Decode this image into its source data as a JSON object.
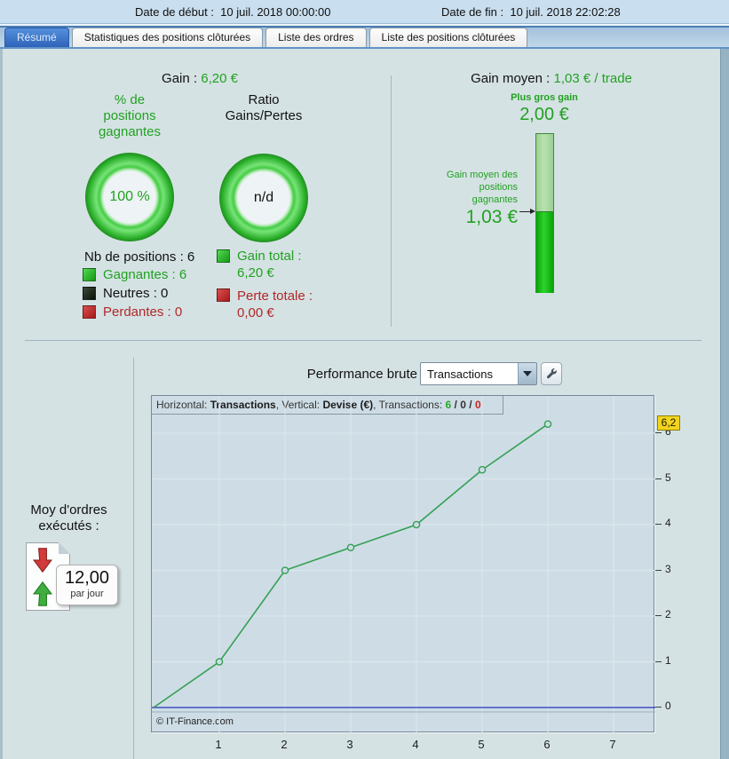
{
  "header": {
    "date_start_label": "Date de début :",
    "date_start_value": "10 juil. 2018 00:00:00",
    "date_end_label": "Date de fin :",
    "date_end_value": "10 juil. 2018 22:02:28"
  },
  "tabs": [
    {
      "label": "Résumé",
      "active": true
    },
    {
      "label": "Statistiques des positions clôturées",
      "active": false
    },
    {
      "label": "Liste des ordres",
      "active": false
    },
    {
      "label": "Liste des positions clôturées",
      "active": false
    }
  ],
  "summary": {
    "gain_label": "Gain :",
    "gain_value": "6,20 €",
    "win_pct_title": "% de\npositions\ngagnantes",
    "win_pct_value": "100 %",
    "ratio_title": "Ratio\nGains/Pertes",
    "ratio_value": "n/d",
    "positions_label": "Nb de positions : 6",
    "legend": [
      {
        "label": "Gagnantes : 6",
        "color": "#2ec82e"
      },
      {
        "label": "Neutres : 0",
        "color": "#1d2a1d"
      },
      {
        "label": "Perdantes : 0",
        "color": "#cc3333"
      }
    ],
    "gain_total_label": "Gain total :",
    "gain_total_value": "6,20 €",
    "loss_total_label": "Perte totale :",
    "loss_total_value": "0,00 €"
  },
  "average": {
    "title_label": "Gain moyen :",
    "title_value": "1,03 € / trade",
    "biggest_gain_label": "Plus gros gain",
    "biggest_gain_value": "2,00 €",
    "avg_win_label": "Gain moyen des\npositions\ngagnantes",
    "avg_win_value": "1,03 €"
  },
  "performance": {
    "label": "Performance brute",
    "dropdown_value": "Transactions",
    "wrench_icon": "wrench-icon",
    "orders_avg_label": "Moy d'ordres\nexécutés :",
    "orders_avg_value": "12,00",
    "orders_avg_unit": "par jour"
  },
  "chart_data": {
    "type": "line",
    "title": "Performance brute",
    "header": {
      "h_label": "Horizontal:",
      "h_value": "Transactions",
      "sep1": ", ",
      "v_label": "Vertical:",
      "v_value": "Devise (€)",
      "sep2": ", ",
      "t_label": "Transactions:",
      "wins": "6",
      "slash1": " / ",
      "neutrals": "0",
      "slash2": " / ",
      "losses": "0"
    },
    "xlabel": "Transactions",
    "ylabel": "Devise (€)",
    "x": [
      0,
      1,
      2,
      3,
      4,
      5,
      6
    ],
    "y": [
      0,
      1,
      3,
      3.5,
      4,
      5.2,
      6.2
    ],
    "x_ticks": [
      1,
      2,
      3,
      4,
      5,
      6,
      7
    ],
    "y_ticks": [
      0,
      1,
      2,
      3,
      4,
      5,
      6
    ],
    "xlim": [
      0,
      7.65
    ],
    "ylim": [
      -0.6,
      6.9
    ],
    "grid": true,
    "legend_position": "none",
    "current_value": 6.2,
    "current_value_label": "6,2",
    "series_color": "#35a055",
    "zero_line_color": "#2233bb",
    "copyright": "© IT-Finance.com"
  },
  "colors": {
    "accent_green": "#21a121",
    "accent_red": "#b02828",
    "badge_yellow": "#f2d41f",
    "tab_active_blue": "#3a70c4",
    "bar_bright_green": "#11c511",
    "bar_light_green": "#a9d8a2",
    "panel_bg": "#d5e2e4",
    "chart_bg": "#cedde5"
  }
}
